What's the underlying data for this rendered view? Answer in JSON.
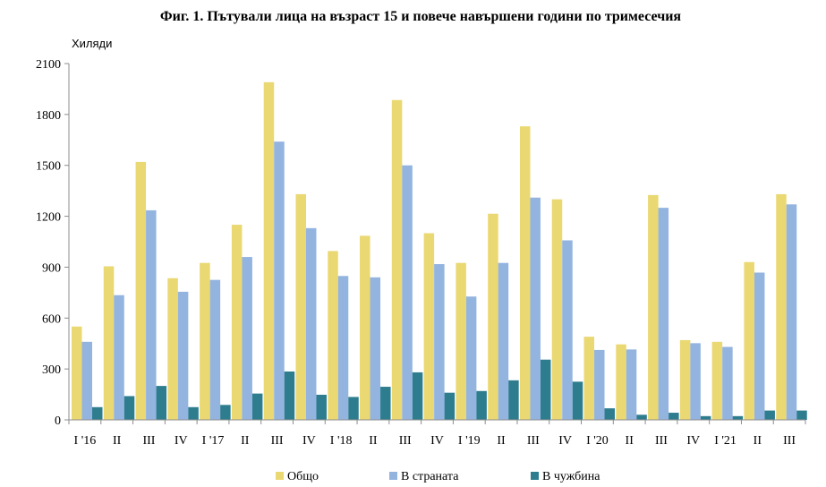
{
  "chart_data": {
    "type": "bar",
    "title": "Фиг. 1. Пътували лица на възраст 15 и повече навършени години по тримесечия",
    "ylabel": "Хиляди",
    "xlabel": "",
    "ylim": [
      0,
      2100
    ],
    "yticks": [
      0,
      300,
      600,
      900,
      1200,
      1500,
      1800,
      2100
    ],
    "grid": false,
    "legend_position": "bottom",
    "categories": [
      "I '16",
      "II",
      "III",
      "IV",
      "I '17",
      "II",
      "III",
      "IV",
      "I '18",
      "II",
      "III",
      "IV",
      "I '19",
      "II",
      "III",
      "IV",
      "I '20",
      "II",
      "III",
      "IV",
      "I '21",
      "II",
      "III"
    ],
    "series": [
      {
        "name": "Общо",
        "color": "#ead872",
        "values": [
          550,
          905,
          1520,
          835,
          925,
          1150,
          1990,
          1330,
          995,
          1085,
          1885,
          1100,
          925,
          1215,
          1730,
          1300,
          490,
          445,
          1325,
          470,
          460,
          930,
          1330
        ]
      },
      {
        "name": "В страната",
        "color": "#94b4e0",
        "values": [
          460,
          735,
          1235,
          755,
          825,
          960,
          1640,
          1130,
          848,
          840,
          1500,
          918,
          727,
          925,
          1310,
          1058,
          412,
          415,
          1250,
          452,
          430,
          868,
          1270
        ]
      },
      {
        "name": "В чужбина",
        "color": "#2e7d8f",
        "values": [
          75,
          140,
          200,
          75,
          88,
          155,
          285,
          148,
          135,
          195,
          280,
          160,
          170,
          233,
          355,
          225,
          68,
          30,
          42,
          22,
          22,
          55,
          55
        ]
      }
    ]
  }
}
